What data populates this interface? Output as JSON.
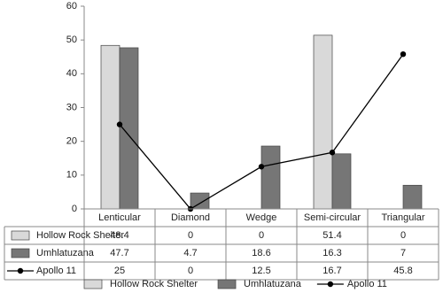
{
  "chart_data": {
    "type": "bar",
    "categories": [
      "Lenticular",
      "Diamond",
      "Wedge",
      "Semi-circular",
      "Triangular"
    ],
    "series": [
      {
        "name": "Hollow Rock Shelter",
        "color": "#d9d9d9",
        "values": [
          48.4,
          0,
          0,
          51.4,
          0
        ]
      },
      {
        "name": "Umhlatuzana",
        "color": "#767676",
        "values": [
          47.7,
          4.7,
          18.6,
          16.3,
          7
        ]
      },
      {
        "name": "Apollo 11",
        "color": "#000000",
        "type": "line",
        "values": [
          25,
          0,
          12.5,
          16.7,
          45.8
        ]
      }
    ],
    "ylim": [
      0,
      60
    ],
    "yticks": [
      0,
      10,
      20,
      30,
      40,
      50,
      60
    ],
    "grid": false,
    "data_table": true,
    "legend": "bottom"
  }
}
